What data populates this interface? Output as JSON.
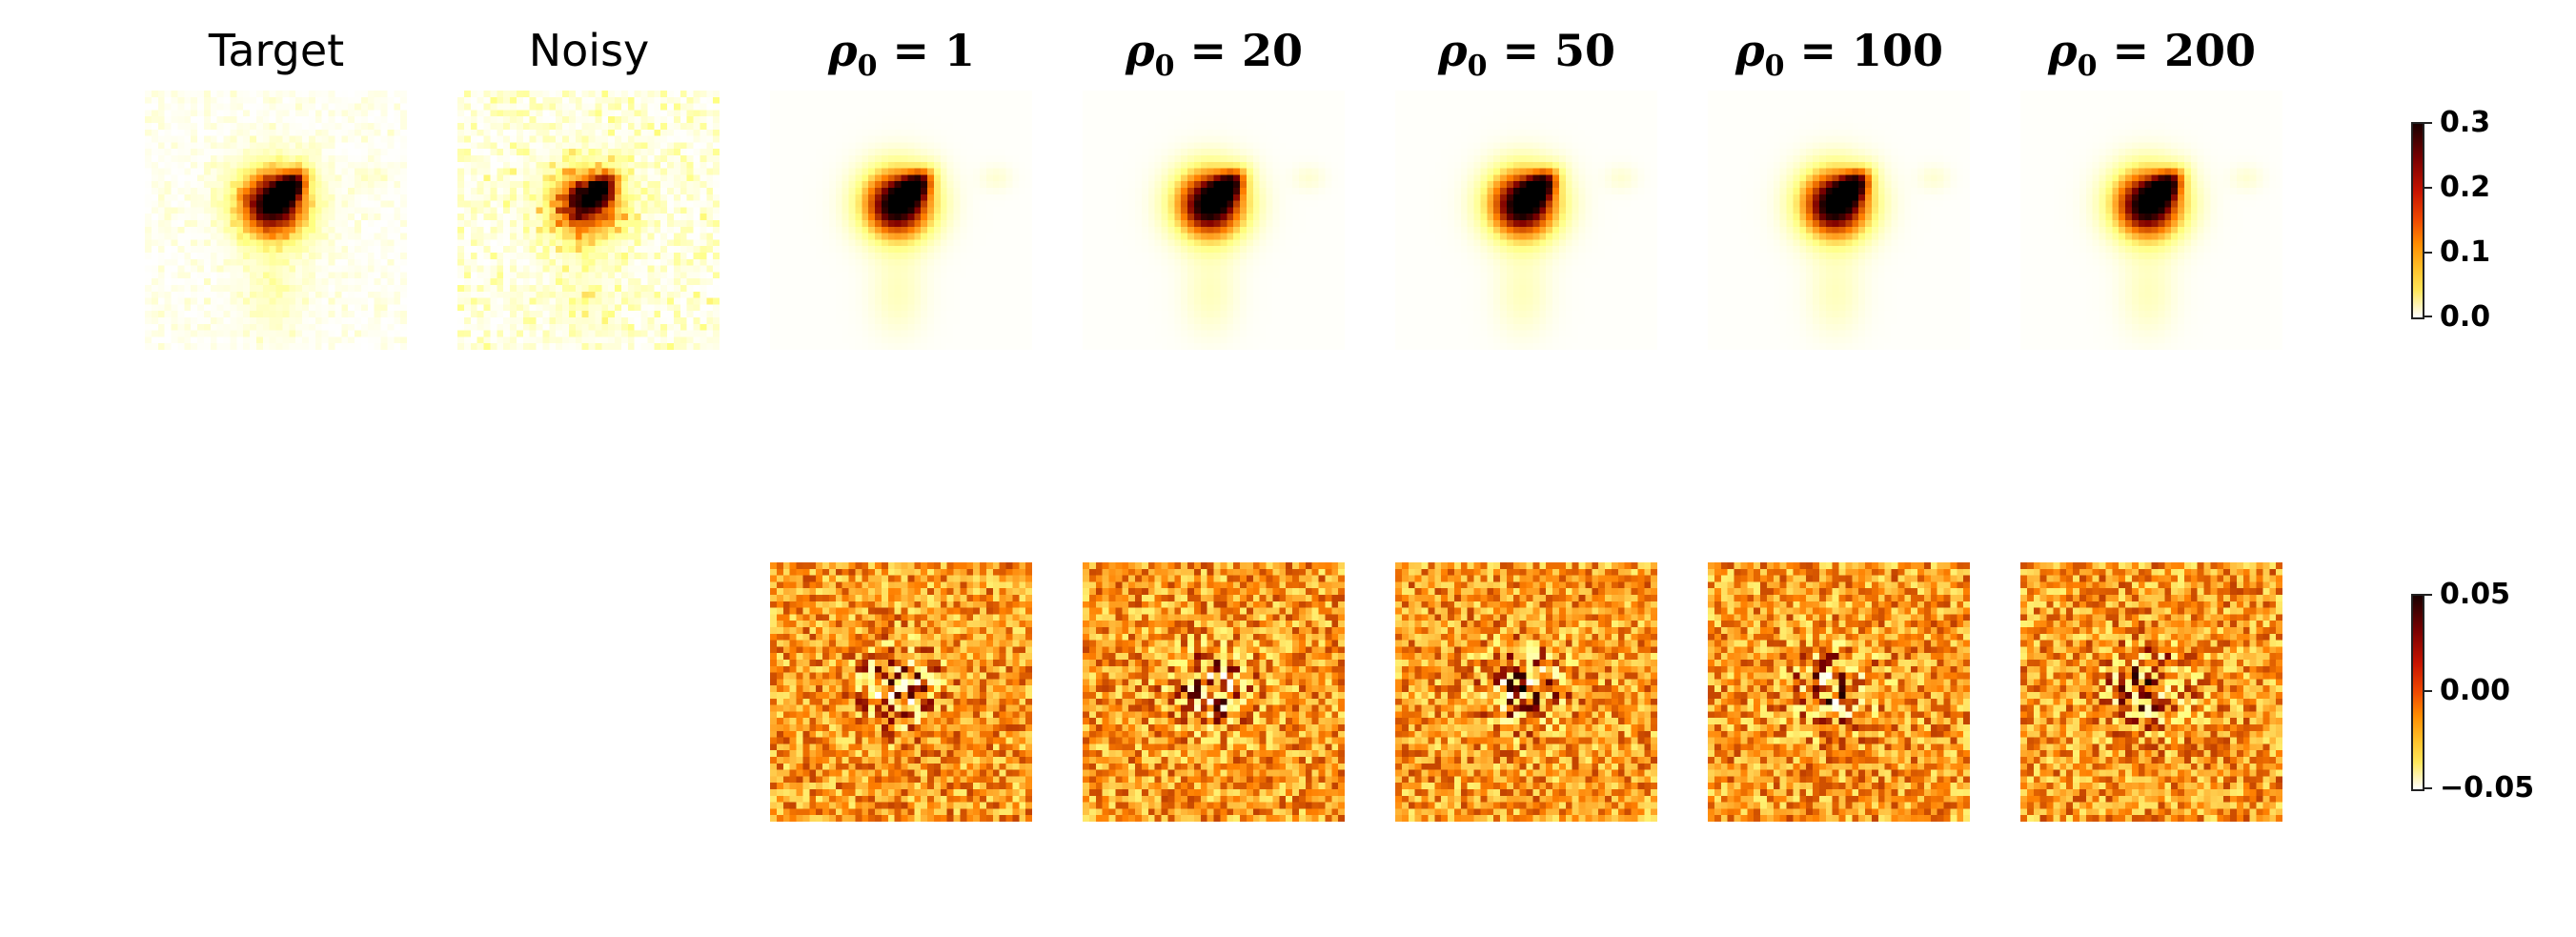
{
  "columns": [
    {
      "id": "target",
      "title": "Target",
      "style": "plain"
    },
    {
      "id": "noisy",
      "title": "Noisy",
      "style": "plain"
    },
    {
      "id": "rho1",
      "title_prefix": "ρ",
      "title_sub": "0",
      "title_value": " = 1",
      "style": "bold"
    },
    {
      "id": "rho20",
      "title_prefix": "ρ",
      "title_sub": "0",
      "title_value": " = 20",
      "style": "bold"
    },
    {
      "id": "rho50",
      "title_prefix": "ρ",
      "title_sub": "0",
      "title_value": " = 50",
      "style": "bold"
    },
    {
      "id": "rho100",
      "title_prefix": "ρ",
      "title_sub": "0",
      "title_value": " = 100",
      "style": "bold"
    },
    {
      "id": "rho200",
      "title_prefix": "ρ",
      "title_sub": "0",
      "title_value": " = 200",
      "style": "bold"
    }
  ],
  "colorbars": {
    "top": {
      "ticks": [
        "0.3",
        "0.2",
        "0.1",
        "0.0"
      ],
      "range": [
        0.0,
        0.3
      ],
      "colormap": "afmhot_r"
    },
    "bottom": {
      "ticks": [
        "0.05",
        "0.00",
        "−0.05"
      ],
      "range": [
        -0.05,
        0.05
      ],
      "colormap": "afmhot_r"
    }
  },
  "colors": {
    "dark": "#1a0000",
    "red": "#c81400",
    "orange": "#ff8c00",
    "yellow": "#ffe65a",
    "white": "#ffffff"
  }
}
